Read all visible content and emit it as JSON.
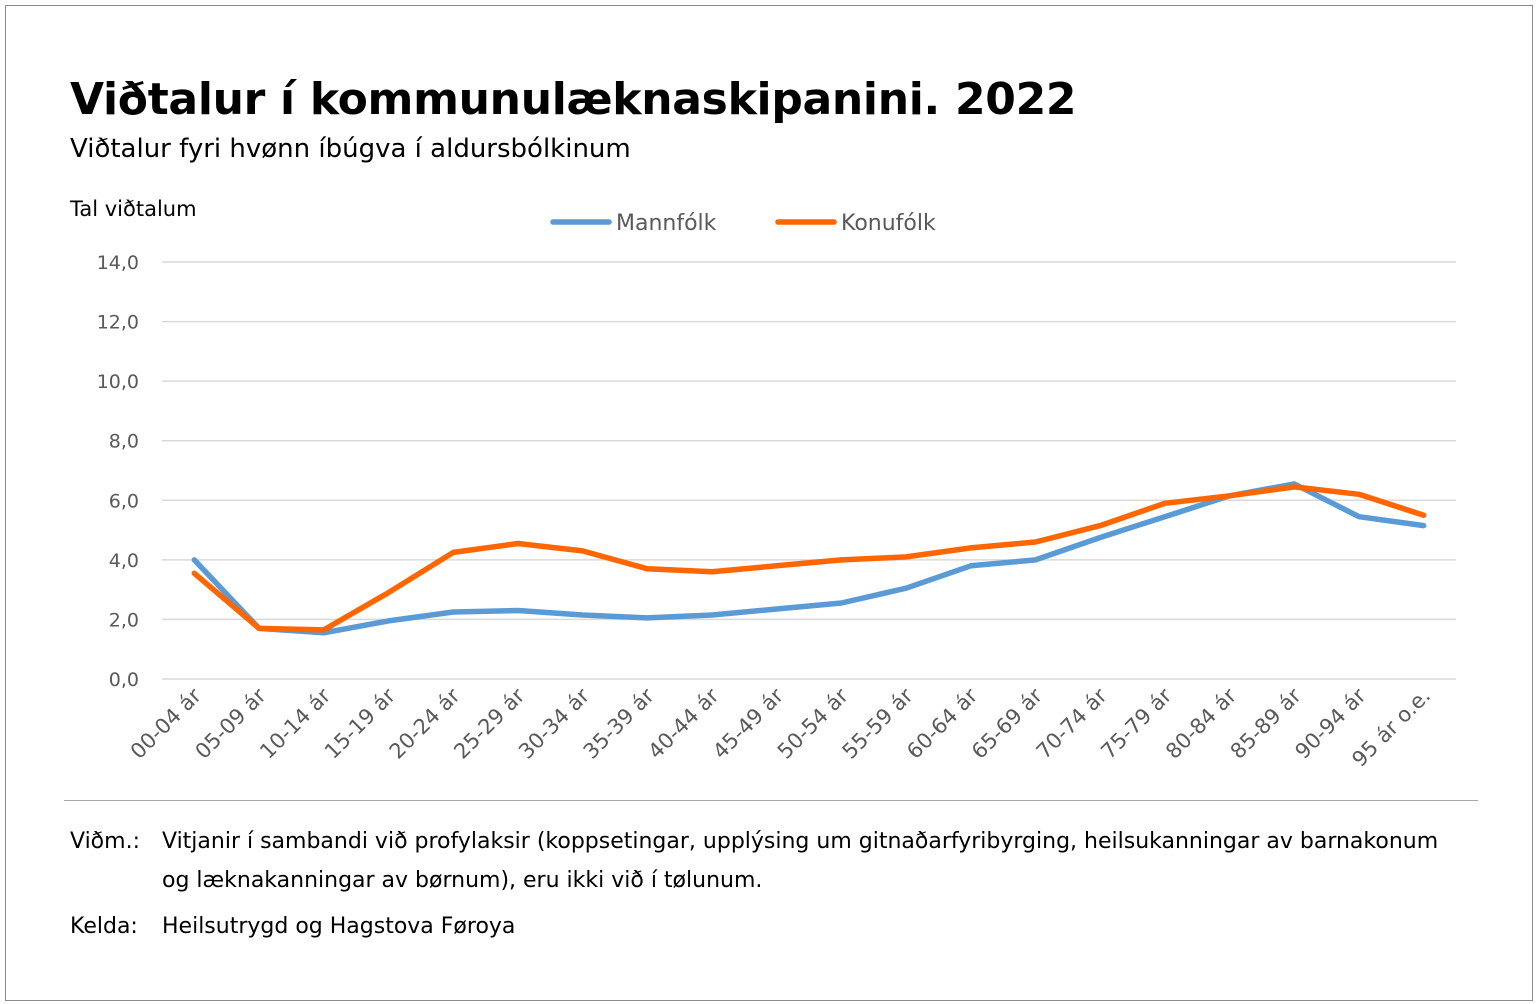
{
  "title": "Viðtalur í kommunulæknaskipanini. 2022",
  "subtitle": "Viðtalur fyri hvønn íbúgva í aldursbólkinum",
  "footnotes": {
    "note_label": "Viðm.:",
    "note_text": "Vitjanir í sambandi við profylaksir (koppsetingar, upplýsing um gitnaðarfyribyrging, heilsukanningar av barnakonum og læknakanningar av børnum), eru ikki við í tølunum.",
    "source_label": "Kelda:",
    "source_text": "Heilsutrygd og Hagstova Føroya"
  },
  "chart_data": {
    "type": "line",
    "ylabel": "Tal viðtalum",
    "ylim": [
      0,
      14
    ],
    "yticks": [
      "0,0",
      "2,0",
      "4,0",
      "6,0",
      "8,0",
      "10,0",
      "12,0",
      "14,0"
    ],
    "ytick_values": [
      0,
      2,
      4,
      6,
      8,
      10,
      12,
      14
    ],
    "grid": true,
    "legend_position": "top-center",
    "categories": [
      "00-04 ár",
      "05-09 ár",
      "10-14 ár",
      "15-19 ár",
      "20-24 ár",
      "25-29 ár",
      "30-34 ár",
      "35-39 ár",
      "40-44 ár",
      "45-49 ár",
      "50-54 ár",
      "55-59 ár",
      "60-64 ár",
      "65-69 ár",
      "70-74 ár",
      "75-79 ár",
      "80-84 ár",
      "85-89 ár",
      "90-94 ár",
      "95 ár o.e."
    ],
    "series": [
      {
        "name": "Mannfólk",
        "color": "#5b9bd5",
        "values": [
          4.0,
          1.7,
          1.55,
          1.95,
          2.25,
          2.3,
          2.15,
          2.05,
          2.15,
          2.35,
          2.55,
          3.05,
          3.8,
          4.0,
          4.75,
          5.45,
          6.15,
          6.55,
          5.45,
          5.15
        ]
      },
      {
        "name": "Konufólk",
        "color": "#ff6600",
        "values": [
          3.55,
          1.7,
          1.65,
          2.9,
          4.25,
          4.55,
          4.3,
          3.7,
          3.6,
          3.8,
          4.0,
          4.1,
          4.4,
          4.6,
          5.15,
          5.9,
          6.15,
          6.45,
          6.2,
          5.5
        ]
      }
    ]
  }
}
